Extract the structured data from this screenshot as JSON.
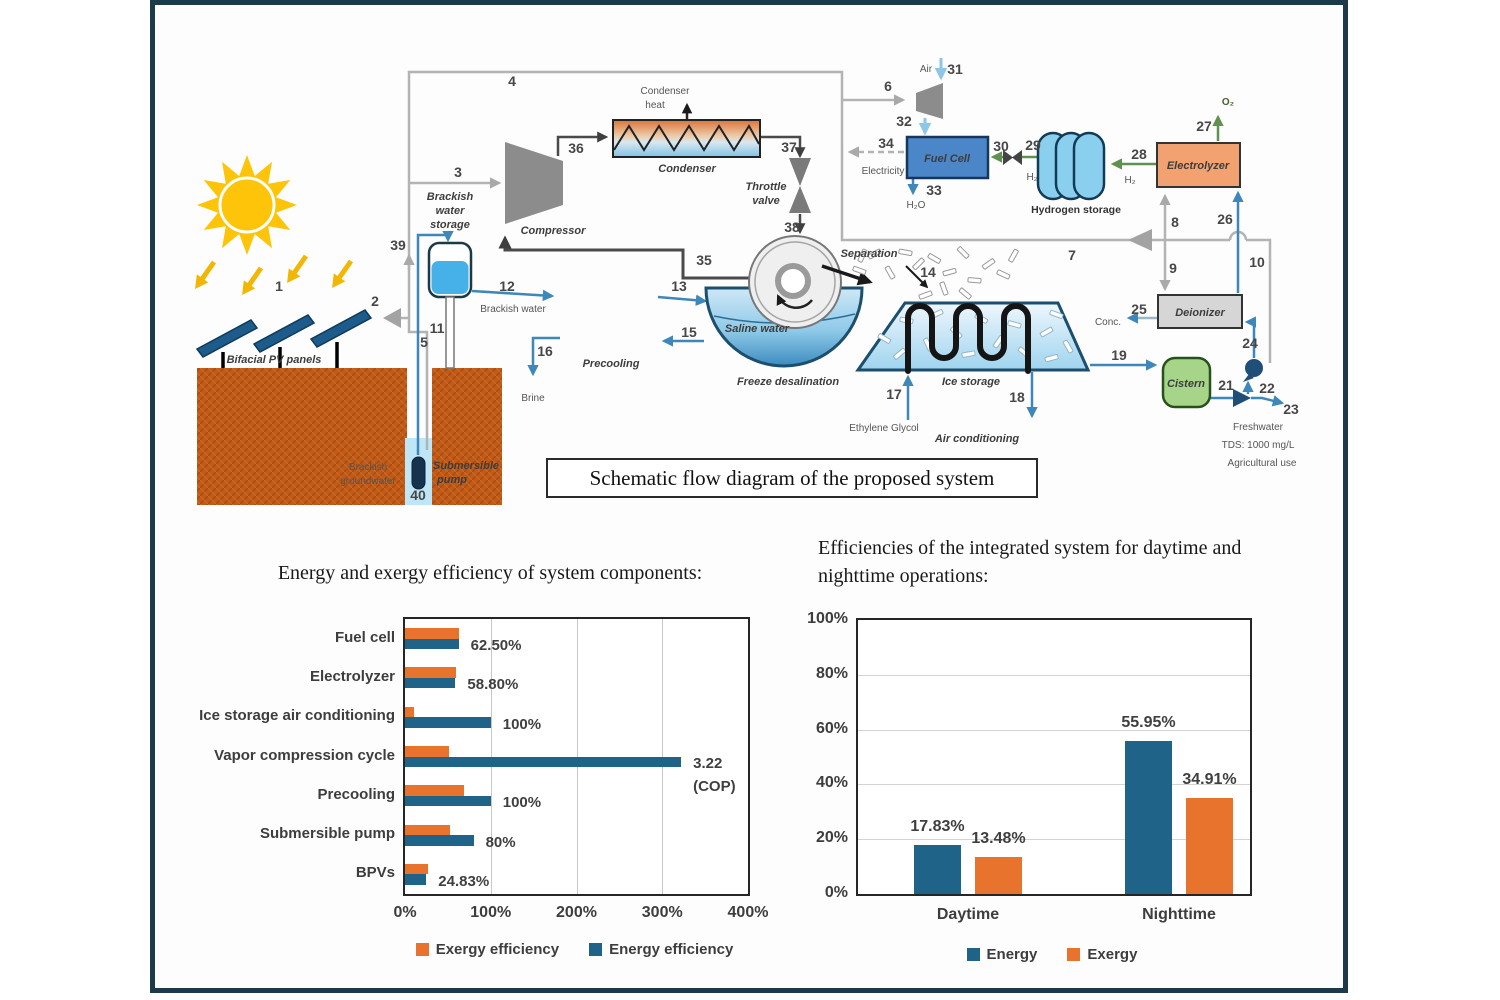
{
  "figure": {
    "caption": "Schematic flow diagram of the proposed system"
  },
  "schematic": {
    "labels": {
      "bifacial_pv_panels": "Bifacial PV panels",
      "brackish_groundwater_1": "Brackish",
      "brackish_groundwater_2": "groundwater",
      "submersible_pump_1": "Submersible",
      "submersible_pump_2": "pump",
      "brackish_water_storage_1": "Brackish",
      "brackish_water_storage_2": "water",
      "brackish_water_storage_3": "storage",
      "compressor": "Compressor",
      "condenser": "Condenser",
      "condenser_heat_1": "Condenser",
      "condenser_heat_2": "heat",
      "throttle_valve_1": "Throttle",
      "throttle_valve_2": "valve",
      "brackish_water": "Brackish water",
      "precooling": "Precooling",
      "brine": "Brine",
      "saline_water": "Saline water",
      "freeze_desalination": "Freeze desalination",
      "separation": "Separation",
      "ice_storage": "Ice storage",
      "ethylene_glycol": "Ethylene Glycol",
      "air_conditioning": "Air conditioning",
      "air": "Air",
      "electricity": "Electricity",
      "h2o": "H₂O",
      "fuel_cell": "Fuel Cell",
      "hydrogen_storage": "Hydrogen storage",
      "h2_storage_side": "H₂",
      "h2_fuelcell_side": "H₂",
      "electrolyzer": "Electrolyzer",
      "o2": "O₂",
      "deionizer": "Deionizer",
      "conc": "Conc.",
      "cistern": "Cistern",
      "freshwater": "Freshwater",
      "tds": "TDS: 1000 mg/L",
      "agricultural_use": "Agricultural use"
    },
    "streams": {
      "s1": "1",
      "s2": "2",
      "s3": "3",
      "s4": "4",
      "s5": "5",
      "s6": "6",
      "s7": "7",
      "s8": "8",
      "s9": "9",
      "s10": "10",
      "s11": "11",
      "s12": "12",
      "s13": "13",
      "s14": "14",
      "s15": "15",
      "s16": "16",
      "s17": "17",
      "s18": "18",
      "s19": "19",
      "s21": "21",
      "s22": "22",
      "s23": "23",
      "s24": "24",
      "s25": "25",
      "s26": "26",
      "s27": "27",
      "s28": "28",
      "s29": "29",
      "s30": "30",
      "s31": "31",
      "s32": "32",
      "s33": "33",
      "s34": "34",
      "s35": "35",
      "s36": "36",
      "s37": "37",
      "s38": "38",
      "s39": "39",
      "s40": "40"
    }
  },
  "chart_data": [
    {
      "type": "bar",
      "orientation": "horizontal",
      "title": "Energy and exergy efficiency of system components:",
      "categories": [
        "Fuel cell",
        "Electrolyzer",
        "Ice storage air conditioning",
        "Vapor compression cycle",
        "Precooling",
        "Submersible pump",
        "BPVs"
      ],
      "series": [
        {
          "name": "Exergy efficiency",
          "color": "#E8732C",
          "values": [
            63,
            59,
            10,
            51,
            69,
            53,
            27
          ]
        },
        {
          "name": "Energy efficiency",
          "color": "#1F6488",
          "values": [
            62.5,
            58.8,
            100,
            322,
            100,
            80,
            24.83
          ]
        }
      ],
      "data_labels": [
        "62.50%",
        "58.80%",
        "100%",
        "3.22\n(COP)",
        "100%",
        "80%",
        "24.83%"
      ],
      "xlabel": "",
      "ylabel": "",
      "xlim": [
        0,
        400
      ],
      "x_ticks": [
        "0%",
        "100%",
        "200%",
        "300%",
        "400%"
      ],
      "grid": true,
      "legend_position": "bottom"
    },
    {
      "type": "bar",
      "orientation": "vertical",
      "title": "Efficiencies of the integrated system for daytime and\nnighttime operations:",
      "categories": [
        "Daytime",
        "Nighttime"
      ],
      "series": [
        {
          "name": "Energy",
          "color": "#1F6488",
          "values": [
            17.83,
            55.95
          ]
        },
        {
          "name": "Exergy",
          "color": "#E8732C",
          "values": [
            13.48,
            34.91
          ]
        }
      ],
      "data_labels": [
        [
          "17.83%",
          "13.48%"
        ],
        [
          "55.95%",
          "34.91%"
        ]
      ],
      "xlabel": "",
      "ylabel": "",
      "ylim": [
        0,
        100
      ],
      "y_ticks": [
        "0%",
        "20%",
        "40%",
        "60%",
        "80%",
        "100%"
      ],
      "grid": true,
      "legend_position": "bottom"
    }
  ]
}
